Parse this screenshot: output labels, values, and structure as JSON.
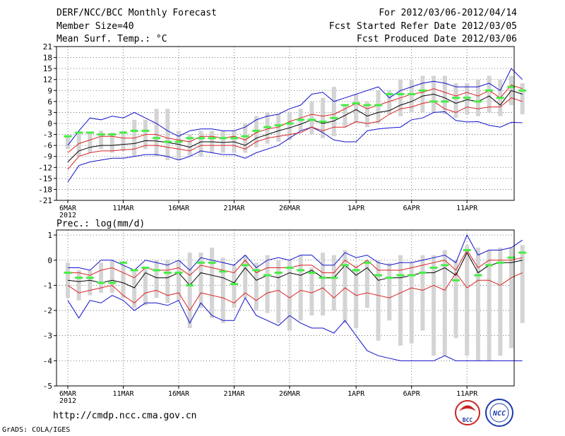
{
  "header": {
    "title": "DERF/NCC/BCC Monthly Forecast",
    "member_size": "Member Size=40",
    "variable_temp": "Mean Surf. Temp.: °C",
    "forecast_period": "For 2012/03/06-2012/04/14",
    "started_refer": "Fcst Started Refer Date 2012/03/05",
    "produced": "Fcst Produced Date 2012/03/06"
  },
  "footer": {
    "url": "http://cmdp.ncc.cma.gov.cn",
    "credit": "GrADS: COLA/IGES",
    "logo_bcc": "BCC",
    "logo_ncc": "NCC"
  },
  "colors": {
    "box": "#d4d4d4",
    "observed": "#44ee44",
    "median": "#000000",
    "quartile": "#dd2222",
    "extreme": "#1111cc"
  },
  "chart_data": [
    {
      "type": "line",
      "title": "Mean Surf. Temp.: °C",
      "x_tick_labels": [
        "6MAR",
        "11MAR",
        "16MAR",
        "21MAR",
        "26MAR",
        "1APR",
        "6APR",
        "11APR"
      ],
      "x_tick_days": [
        0,
        5,
        10,
        15,
        20,
        26,
        31,
        36
      ],
      "year_label": "2012",
      "xlim": [
        0,
        40
      ],
      "ylim": [
        -21,
        21
      ],
      "yticks": [
        -21,
        -18,
        -15,
        -12,
        -9,
        -6,
        -3,
        0,
        3,
        6,
        9,
        12,
        15,
        18,
        21
      ],
      "grid": true,
      "series": [
        {
          "name": "max",
          "values": [
            -16,
            -11.5,
            -10.5,
            -10,
            -9.5,
            -9.5,
            -9,
            -8.5,
            -8.5,
            -9,
            -10,
            -9,
            -7.5,
            -8,
            -8.5,
            -8.5,
            -9.5,
            -8,
            -7,
            -6,
            -4,
            -2,
            -1,
            -2.5,
            -4.5,
            -5,
            -5,
            -2,
            -1.5,
            -1.2,
            -1,
            1,
            1.5,
            3,
            3.2,
            0.8,
            0.4,
            0.5,
            -0.5,
            -1,
            0.3,
            0.2
          ]
        },
        {
          "name": "q_low",
          "values": [
            -12.5,
            -9,
            -8,
            -7.5,
            -7.5,
            -7.2,
            -7,
            -6,
            -6,
            -6.5,
            -7,
            -7.5,
            -6,
            -6,
            -6,
            -6,
            -7,
            -5,
            -4,
            -3.5,
            -3,
            -2.5,
            -1,
            -2,
            -1,
            -1,
            0.5,
            0,
            0.5,
            2.5,
            4,
            4.5,
            5.5,
            6,
            4,
            3,
            4.5,
            4,
            4.5,
            4.5,
            7,
            6
          ]
        },
        {
          "name": "median",
          "values": [
            -10.5,
            -7.5,
            -6.5,
            -6,
            -6,
            -5.7,
            -5.5,
            -4.7,
            -4.8,
            -5.2,
            -5.7,
            -6.5,
            -5,
            -5,
            -5.2,
            -5,
            -6,
            -4,
            -3,
            -2,
            -1.2,
            -0.2,
            1,
            0,
            0.7,
            2.2,
            3.8,
            2,
            3,
            3.5,
            5,
            6,
            7.5,
            8,
            7,
            5.5,
            6.5,
            6,
            7.5,
            5,
            9,
            8
          ]
        },
        {
          "name": "q_high",
          "values": [
            -8,
            -5.5,
            -4.5,
            -3.5,
            -3.5,
            -4,
            -4,
            -3,
            -3,
            -4,
            -4.5,
            -5,
            -3.5,
            -3.5,
            -4,
            -3.5,
            -4.5,
            -2.5,
            -1.5,
            -1,
            0.5,
            1.5,
            2.5,
            2,
            2.5,
            4,
            5.5,
            4,
            5,
            6,
            7,
            8,
            8.5,
            9.5,
            8.5,
            7.5,
            8.5,
            7.5,
            9,
            7,
            10.5,
            9.5
          ]
        },
        {
          "name": "min",
          "values": [
            -6,
            -2,
            1.5,
            1,
            2,
            1.5,
            3,
            1.5,
            0,
            -2,
            -3.5,
            -2,
            -1.5,
            -1.5,
            -2,
            -2,
            -1,
            1,
            2,
            2.5,
            4,
            5,
            8,
            8.5,
            6,
            7,
            8,
            9,
            10,
            7,
            9,
            10,
            11,
            11.5,
            11,
            10,
            10,
            10,
            11,
            9,
            15,
            12
          ]
        },
        {
          "name": "box_low",
          "values": [
            -7,
            -9,
            -8,
            -7,
            -8,
            -7.5,
            -9,
            -7,
            -9,
            -10,
            -10,
            -9,
            -9,
            -8,
            -8,
            -8,
            -8,
            -6.5,
            -5.5,
            -5,
            -4.5,
            -2,
            -3,
            -4,
            -3.5,
            -1,
            0,
            -1,
            0,
            2.5,
            2,
            3,
            3,
            3,
            2.5,
            1.5,
            2.5,
            2,
            3,
            2,
            5,
            2.5
          ]
        },
        {
          "name": "box_high",
          "values": [
            -3.5,
            -2.5,
            -2.5,
            -2,
            -2.5,
            -2,
            1,
            1,
            4,
            4,
            -2,
            -3,
            -2,
            -2,
            -2,
            -2,
            0,
            2,
            3,
            2.5,
            3,
            4,
            6,
            7,
            10,
            5,
            8,
            6,
            9,
            9,
            12,
            12,
            13,
            13,
            13,
            11,
            11,
            12,
            13,
            12,
            13,
            11
          ]
        },
        {
          "name": "observed",
          "values": [
            -3.5,
            -2.5,
            -2.5,
            -3,
            -3,
            -2.5,
            -2,
            -2,
            -4,
            -5,
            -5,
            -4,
            -4,
            -4,
            -4,
            -4,
            -3.5,
            -2,
            -1,
            -0.5,
            0,
            1,
            1,
            0.5,
            1.5,
            5,
            5.5,
            5,
            5,
            8,
            8,
            8,
            9,
            6,
            6,
            7,
            7,
            6,
            9,
            7,
            10,
            9
          ]
        }
      ]
    },
    {
      "type": "line",
      "title": "Prec.: log(mm/d)",
      "x_tick_labels": [
        "6MAR",
        "11MAR",
        "16MAR",
        "21MAR",
        "26MAR",
        "1APR",
        "6APR",
        "11APR"
      ],
      "x_tick_days": [
        0,
        5,
        10,
        15,
        20,
        26,
        31,
        36
      ],
      "year_label": "2012",
      "xlim": [
        0,
        40
      ],
      "ylim": [
        -5,
        1.2
      ],
      "yticks": [
        -5,
        -4,
        -3,
        -2,
        -1,
        0,
        1
      ],
      "grid": true,
      "series": [
        {
          "name": "max",
          "values": [
            -1.6,
            -2.3,
            -1.6,
            -1.7,
            -1.4,
            -1.6,
            -2,
            -1.7,
            -1.7,
            -1.8,
            -1.6,
            -2.5,
            -1.7,
            -2.2,
            -2.4,
            -2.4,
            -1.5,
            -2.2,
            -2.4,
            -2.6,
            -2.2,
            -2.5,
            -2.7,
            -2.7,
            -2.9,
            -2.4,
            -3,
            -3.6,
            -3.8,
            -3.9,
            -4,
            -4,
            -4,
            -4,
            -3.8,
            -4,
            -4,
            -4,
            -4,
            -4,
            -4,
            -4
          ]
        },
        {
          "name": "q_low",
          "values": [
            -1,
            -1.3,
            -1.2,
            -1.1,
            -1,
            -1.4,
            -1.7,
            -1.3,
            -1.2,
            -1.4,
            -1.3,
            -2,
            -1.3,
            -1.4,
            -1.5,
            -1.7,
            -1.3,
            -1.6,
            -1.3,
            -1.2,
            -1.5,
            -1.2,
            -1.3,
            -1.1,
            -1.5,
            -1.1,
            -1.4,
            -1.3,
            -1.4,
            -1.5,
            -1.3,
            -1.1,
            -1.2,
            -1,
            -1.2,
            -0.5,
            -1.1,
            -0.8,
            -0.8,
            -1,
            -0.7,
            -0.5
          ]
        },
        {
          "name": "median",
          "values": [
            -0.8,
            -0.85,
            -0.8,
            -0.9,
            -0.8,
            -0.9,
            -1.1,
            -0.5,
            -0.7,
            -0.7,
            -0.5,
            -1,
            -0.5,
            -0.6,
            -0.7,
            -0.9,
            -0.3,
            -0.8,
            -0.6,
            -0.7,
            -0.5,
            -0.6,
            -0.4,
            -0.7,
            -0.7,
            -0.2,
            -0.6,
            -0.3,
            -0.8,
            -0.7,
            -0.7,
            -0.6,
            -0.5,
            -0.5,
            -0.3,
            -0.6,
            0.3,
            -0.5,
            -0.2,
            -0.1,
            -0.1,
            0
          ]
        },
        {
          "name": "q_high",
          "values": [
            -0.5,
            -0.5,
            -0.6,
            -0.4,
            -0.3,
            -0.5,
            -0.7,
            -0.3,
            -0.4,
            -0.4,
            -0.3,
            -0.6,
            -0.2,
            -0.3,
            -0.4,
            -0.5,
            0,
            -0.5,
            -0.3,
            -0.3,
            -0.3,
            -0.2,
            -0.2,
            -0.5,
            -0.5,
            0,
            -0.3,
            0,
            -0.4,
            -0.4,
            -0.4,
            -0.3,
            -0.2,
            -0.1,
            0,
            -0.4,
            0.4,
            -0.3,
            0,
            0,
            0,
            0.1
          ]
        },
        {
          "name": "min",
          "values": [
            -0.3,
            -0.3,
            -0.4,
            0,
            0,
            -0.2,
            -0.4,
            0,
            -0.1,
            -0.2,
            0,
            -0.4,
            0.1,
            0,
            -0.1,
            -0.2,
            0.2,
            -0.3,
            0,
            0.1,
            0,
            0.2,
            0.2,
            -0.2,
            -0.2,
            0.3,
            0.1,
            0.2,
            -0.1,
            -0.2,
            -0.1,
            -0.1,
            0,
            0.1,
            0.2,
            -0.1,
            1,
            0.2,
            0.4,
            0.4,
            0.5,
            0.8
          ]
        },
        {
          "name": "box_low",
          "values": [
            -1.5,
            -1.6,
            -1.4,
            -1.3,
            -1.3,
            -1.5,
            -1.9,
            -1.8,
            -1.5,
            -1.7,
            -1.6,
            -2.7,
            -1.9,
            -2.3,
            -2.5,
            -1.9,
            -1.5,
            -2,
            -2.1,
            -2.5,
            -2.8,
            -2.4,
            -2.2,
            -2.2,
            -2,
            -2.5,
            -2.7,
            -1.9,
            -3.2,
            -2.4,
            -3.4,
            -3.3,
            -2.8,
            -3.8,
            -3.8,
            -3.1,
            -3.8,
            -4,
            -4,
            -3.8,
            -3.5,
            -2.5
          ]
        },
        {
          "name": "box_high",
          "values": [
            -0.1,
            -0.4,
            -0.4,
            -0.1,
            0,
            -0.2,
            -0.4,
            -0.3,
            0,
            0,
            0,
            0.3,
            0.3,
            0.5,
            0.1,
            -0.2,
            0.2,
            -0.1,
            0.2,
            0,
            0,
            0.2,
            -0.3,
            0.3,
            0.2,
            0.4,
            -0.2,
            0,
            0,
            -0.1,
            0.2,
            -0.1,
            0.2,
            0.2,
            0.4,
            0,
            0.6,
            0.5,
            0.4,
            0.5,
            0.5,
            0.6
          ]
        },
        {
          "name": "observed",
          "values": [
            -0.5,
            -0.7,
            -0.7,
            -0.9,
            -0.9,
            -0.1,
            -0.4,
            -0.3,
            -0.4,
            -0.5,
            -0.5,
            -1,
            -0.1,
            -0.1,
            -0.45,
            -0.95,
            -0.2,
            -0.4,
            -0.6,
            -0.5,
            -0.3,
            -0.4,
            -0.5,
            -0.7,
            -0.7,
            -0.2,
            -0.4,
            -0.1,
            -0.6,
            -0.7,
            -0.6,
            -0.6,
            -0.5,
            -0.3,
            -0.2,
            -0.8,
            0.4,
            -0.6,
            -0.2,
            -0.1,
            0.1,
            0.3
          ]
        }
      ]
    }
  ]
}
